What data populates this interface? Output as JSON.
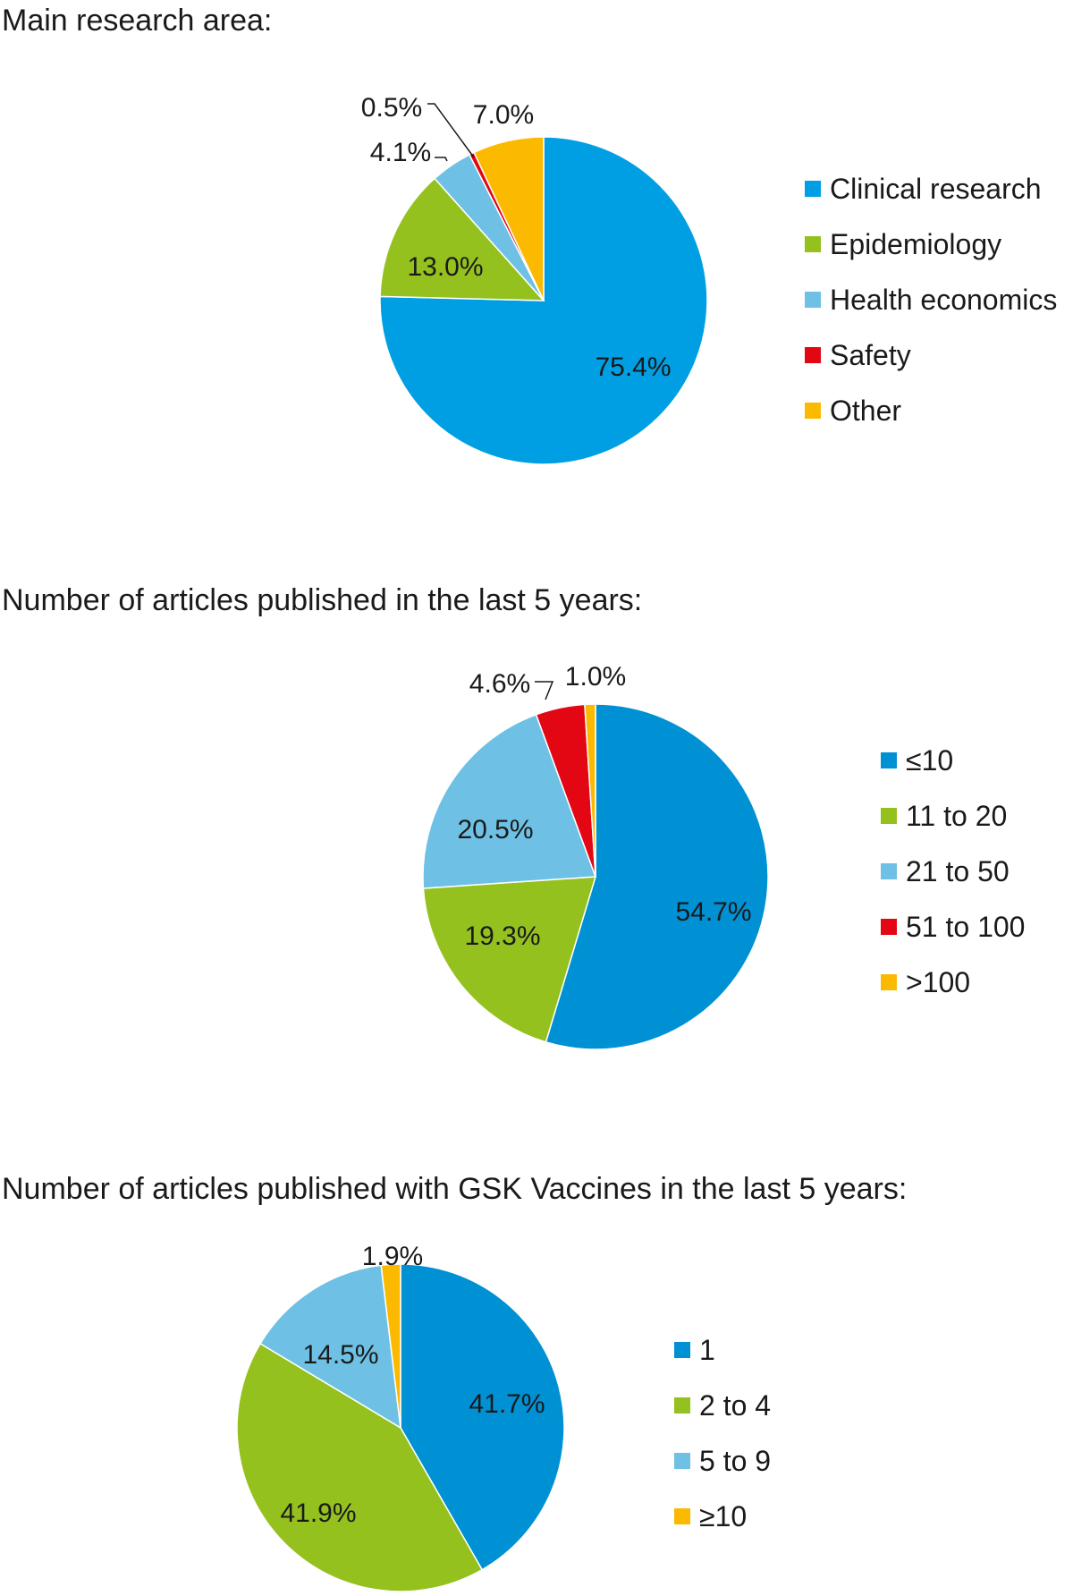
{
  "chart_data": [
    {
      "type": "pie",
      "title": "Main research area:",
      "legend_position": "right",
      "slices": [
        {
          "label": "Clinical research",
          "value": 75.4,
          "value_label": "75.4%",
          "color": "#009fe3"
        },
        {
          "label": "Epidemiology",
          "value": 13.0,
          "value_label": "13.0%",
          "color": "#95c11f"
        },
        {
          "label": "Health economics",
          "value": 4.1,
          "value_label": "4.1%",
          "color": "#6ec1e4"
        },
        {
          "label": "Safety",
          "value": 0.5,
          "value_label": "0.5%",
          "color": "#e30613"
        },
        {
          "label": "Other",
          "value": 7.0,
          "value_label": "7.0%",
          "color": "#fbba00"
        }
      ]
    },
    {
      "type": "pie",
      "title": "Number of articles published in the last 5 years:",
      "legend_position": "right",
      "slices": [
        {
          "label": "≤10",
          "value": 54.7,
          "value_label": "54.7%",
          "color": "#0090d4"
        },
        {
          "label": "11 to 20",
          "value": 19.3,
          "value_label": "19.3%",
          "color": "#95c11f"
        },
        {
          "label": "21 to 50",
          "value": 20.5,
          "value_label": "20.5%",
          "color": "#6ec1e4"
        },
        {
          "label": "51 to 100",
          "value": 4.6,
          "value_label": "4.6%",
          "color": "#e30613"
        },
        {
          "label": ">100",
          "value": 1.0,
          "value_label": "1.0%",
          "color": "#fbba00"
        }
      ]
    },
    {
      "type": "pie",
      "title": "Number of articles published with GSK Vaccines in the last 5 years:",
      "legend_position": "right",
      "slices": [
        {
          "label": "1",
          "value": 41.7,
          "value_label": "41.7%",
          "color": "#0090d4"
        },
        {
          "label": "2 to 4",
          "value": 41.9,
          "value_label": "41.9%",
          "color": "#95c11f"
        },
        {
          "label": "5 to 9",
          "value": 14.5,
          "value_label": "14.5%",
          "color": "#6ec1e4"
        },
        {
          "label": "≥10",
          "value": 1.9,
          "value_label": "1.9%",
          "color": "#fbba00"
        }
      ]
    }
  ]
}
